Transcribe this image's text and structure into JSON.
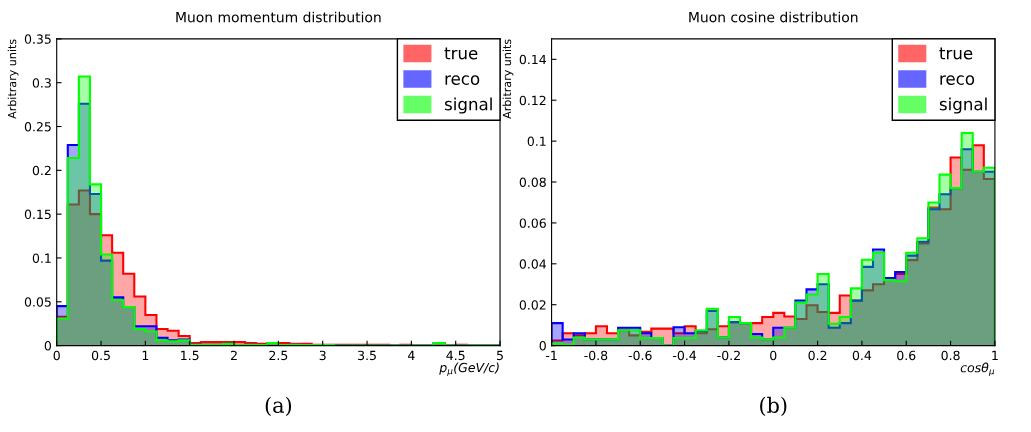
{
  "chart_data": [
    {
      "type": "histogram",
      "title": "Muon momentum distribution",
      "xlabel": "p$_{μ}$(GeV/c)",
      "ylabel": "Arbitrary units",
      "annotations": [
        "(a)"
      ],
      "bins": [
        0,
        0.125,
        0.25,
        0.375,
        0.5,
        0.625,
        0.75,
        0.875,
        1,
        1.125,
        1.25,
        1.375,
        1.5,
        1.625,
        1.75,
        1.875,
        2,
        2.125,
        2.25,
        2.375,
        2.5,
        2.625,
        2.75,
        2.875,
        3,
        3.125,
        3.25,
        3.375,
        3.5,
        3.625,
        3.75,
        3.875,
        4,
        4.125,
        4.25,
        4.375,
        4.5,
        4.625,
        4.75,
        4.875,
        5
      ],
      "series": [
        {
          "name": "true",
          "color": "#ff0000",
          "values": [
            0.033,
            0.161,
            0.177,
            0.15,
            0.126,
            0.106,
            0.082,
            0.056,
            0.035,
            0.019,
            0.017,
            0.011,
            0.003,
            0.004,
            0.004,
            0.004,
            0.004,
            0.003,
            0.002,
            0.003,
            0.003,
            0.002,
            0.002,
            0.001,
            0.001,
            0.001,
            0.001,
            0.001,
            0.001,
            0.001,
            0,
            0.001,
            0,
            0,
            0,
            0,
            0.001,
            0,
            0,
            0
          ]
        },
        {
          "name": "reco",
          "color": "#0000ff",
          "values": [
            0.045,
            0.229,
            0.276,
            0.173,
            0.097,
            0.055,
            0.044,
            0.022,
            0.022,
            0.009,
            0.006,
            0.007,
            0.001,
            0.001,
            0.001,
            0.002,
            0.0005,
            0.001,
            0.0005,
            0.003,
            0.0005,
            0.001,
            0.0005,
            0.0005,
            0.0005,
            0,
            0,
            0,
            0,
            0,
            0,
            0,
            0,
            0,
            0.003,
            0,
            0,
            0,
            0,
            0
          ]
        },
        {
          "name": "signal",
          "color": "#00ff00",
          "values": [
            0.031,
            0.214,
            0.307,
            0.184,
            0.104,
            0.052,
            0.044,
            0.019,
            0.016,
            0.006,
            0.005,
            0.006,
            0.001,
            0.001,
            0.001,
            0.002,
            0.0005,
            0.001,
            0.0005,
            0.003,
            0.0005,
            0.001,
            0.0005,
            0.0005,
            0.0005,
            0,
            0,
            0,
            0,
            0,
            0,
            0,
            0,
            0,
            0.003,
            0,
            0,
            0,
            0,
            0
          ]
        }
      ],
      "xlim": [
        0,
        5
      ],
      "xticks": [
        0,
        0.5,
        1,
        1.5,
        2,
        2.5,
        3,
        3.5,
        4,
        4.5,
        5
      ],
      "ylim": [
        0,
        0.35
      ],
      "yticks": [
        0,
        0.05,
        0.1,
        0.15,
        0.2,
        0.25,
        0.3,
        0.35
      ],
      "legend": "top right",
      "grid": false
    },
    {
      "type": "histogram",
      "title": "Muon cosine distribution",
      "xlabel": "cosθ$_{μ}$",
      "ylabel": "Arbitrary units",
      "annotations": [
        "(b)"
      ],
      "bins": [
        -1,
        -0.95,
        -0.9,
        -0.85,
        -0.8,
        -0.75,
        -0.7,
        -0.65,
        -0.6,
        -0.55,
        -0.5,
        -0.45,
        -0.4,
        -0.35,
        -0.3,
        -0.25,
        -0.2,
        -0.15,
        -0.1,
        -0.05,
        0,
        0.05,
        0.1,
        0.15,
        0.2,
        0.25,
        0.3,
        0.35,
        0.4,
        0.45,
        0.5,
        0.55,
        0.6,
        0.65,
        0.7,
        0.75,
        0.8,
        0.85,
        0.9,
        0.95,
        1
      ],
      "series": [
        {
          "name": "true",
          "color": "#ff0000",
          "values": [
            0.0025,
            0.006,
            0.005,
            0.006,
            0.0095,
            0.006,
            0.0075,
            0.005,
            0.0067,
            0.0083,
            0.0083,
            0.006,
            0.0095,
            0.006,
            0.008,
            0.0095,
            0.0115,
            0.011,
            0.011,
            0.014,
            0.016,
            0.0142,
            0.013,
            0.0197,
            0.0164,
            0.016,
            0.0245,
            0.022,
            0.027,
            0.03,
            0.0327,
            0.035,
            0.0418,
            0.05,
            0.0675,
            0.0667,
            0.092,
            0.086,
            0.098,
            0.0815
          ]
        },
        {
          "name": "reco",
          "color": "#0000ff",
          "values": [
            0.011,
            0.003,
            0.006,
            0.003,
            0.003,
            0.003,
            0.0087,
            0.0087,
            0.006,
            0.0037,
            0,
            0.009,
            0.006,
            0.007,
            0.017,
            0.004,
            0.0115,
            0.011,
            0.0057,
            0.003,
            0.0087,
            0.0087,
            0.022,
            0.0275,
            0.03,
            0.0087,
            0.011,
            0.022,
            0.0385,
            0.047,
            0.033,
            0.036,
            0.044,
            0.0508,
            0.0667,
            0.074,
            0.077,
            0.096,
            0.085,
            0.085
          ]
        },
        {
          "name": "signal",
          "color": "#00ff00",
          "values": [
            0.001,
            0.0005,
            0.004,
            0.003,
            0.003,
            0.003,
            0.0075,
            0.0075,
            0.0037,
            0.0037,
            0,
            0.0037,
            0.0037,
            0.0075,
            0.018,
            0.004,
            0.014,
            0.011,
            0.004,
            0.003,
            0.004,
            0.0087,
            0.021,
            0.025,
            0.035,
            0.0107,
            0.014,
            0.028,
            0.042,
            0.0455,
            0.032,
            0.0315,
            0.0454,
            0.0525,
            0.07,
            0.0836,
            0.077,
            0.104,
            0.085,
            0.087
          ]
        }
      ],
      "xlim": [
        -1,
        1
      ],
      "xticks": [
        -1,
        -0.8,
        -0.6,
        -0.4,
        -0.2,
        0,
        0.2,
        0.4,
        0.6,
        0.8,
        1
      ],
      "ylim": [
        0,
        0.15
      ],
      "yticks": [
        0,
        0.02,
        0.04,
        0.06,
        0.08,
        0.1,
        0.12,
        0.14
      ],
      "legend": "top right",
      "grid": false
    }
  ]
}
